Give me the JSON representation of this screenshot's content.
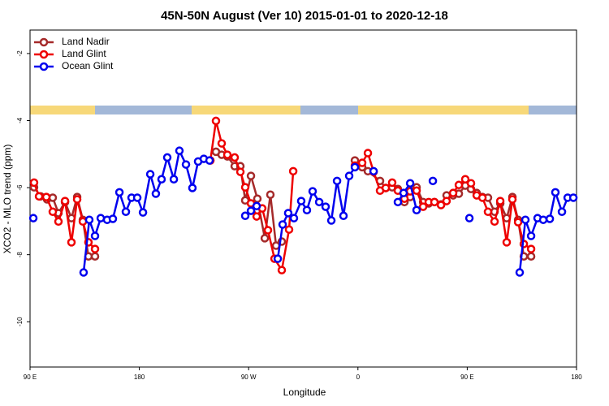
{
  "chart_data": {
    "type": "line",
    "title": "45N-50N August (Ver 10)   2015-01-01 to 2020-12-18",
    "x_label": "Longitude",
    "y_label": "XCO2 - MLO trend (ppm)",
    "xlim": [
      90,
      540
    ],
    "ylim": [
      -11.35,
      -1.3
    ],
    "xticks": [
      {
        "value": 90,
        "label": "90 E"
      },
      180,
      {
        "value": 270,
        "label": "90 W"
      },
      {
        "value": 360,
        "label": "0"
      },
      {
        "value": 450,
        "label": "90 E"
      },
      {
        "value": 540,
        "label": "180"
      }
    ],
    "yticks": [
      -2,
      -4,
      -6,
      -8,
      -10
    ],
    "grid": false,
    "legend": "top-left",
    "series": [
      {
        "name": "Land Nadir",
        "color": "#a52a2a",
        "x": [
          93.3,
          98.7,
          104.0,
          108.7,
          113.4,
          118.8,
          124.1,
          128.8,
          133.5,
          138.1,
          143.5,
          null,
          243.1,
          247.8,
          252.5,
          258.5,
          263.2,
          267.2,
          271.9,
          277.2,
          283.3,
          287.9,
          292.6,
          297.3,
          null,
          357.5,
          363.5,
          368.2,
          378.2,
          382.9,
          388.2,
          392.9,
          398.3,
          403.0,
          408.3,
          413.7,
          418.3,
          423.0,
          428.4,
          433.0,
          438.4,
          443.1,
          448.4,
          453.1,
          457.8,
          462.5,
          467.1,
          472.5,
          477.2,
          482.5,
          487.2,
          491.9,
          496.6,
          502.6
        ],
        "values": [
          -5.99,
          -6.26,
          -6.35,
          -6.3,
          -6.76,
          -6.43,
          -6.91,
          -6.28,
          -6.96,
          -8.05,
          -8.05,
          null,
          -4.93,
          -5.02,
          -5.07,
          -5.36,
          -5.36,
          -6.38,
          -5.65,
          -6.33,
          -7.51,
          -6.21,
          -7.73,
          -7.61,
          null,
          -5.19,
          -5.39,
          -5.51,
          -5.8,
          -6.01,
          -5.99,
          -6.04,
          -6.43,
          -6.28,
          -5.99,
          -6.43,
          -6.47,
          -6.43,
          -6.5,
          -6.23,
          -6.23,
          -6.18,
          -5.94,
          -6.04,
          -6.16,
          -6.28,
          -6.3,
          -6.72,
          -6.47,
          -6.91,
          -6.28,
          -6.96,
          -8.05,
          -8.05
        ]
      },
      {
        "name": "Land Glint",
        "color": "#ee0000",
        "x": [
          93.3,
          97.4,
          103.4,
          108.7,
          113.4,
          118.8,
          124.1,
          128.8,
          133.5,
          138.1,
          143.5,
          null,
          238.5,
          243.1,
          247.8,
          252.5,
          258.5,
          263.2,
          267.2,
          271.9,
          276.6,
          281.2,
          285.9,
          291.3,
          297.3,
          303.3,
          306.7,
          null,
          357.5,
          363.5,
          368.2,
          372.9,
          378.2,
          382.9,
          388.2,
          392.9,
          398.3,
          403.0,
          408.3,
          413.7,
          418.3,
          423.0,
          428.4,
          433.0,
          438.4,
          443.1,
          448.4,
          453.1,
          457.8,
          462.5,
          467.1,
          472.5,
          477.2,
          482.5,
          487.2,
          491.9,
          496.6,
          502.6
        ],
        "values": [
          -5.85,
          -6.26,
          -6.28,
          -6.72,
          -7.01,
          -6.4,
          -7.63,
          -6.35,
          -7.01,
          -7.63,
          -7.83,
          null,
          -5.19,
          -4.01,
          -4.68,
          -5.02,
          -5.1,
          -5.53,
          -5.99,
          -6.47,
          -6.86,
          -6.62,
          -7.27,
          -8.12,
          -8.46,
          -7.25,
          -5.51,
          null,
          -5.34,
          -5.26,
          -4.97,
          -5.53,
          -6.09,
          -6.01,
          -5.85,
          -6.09,
          -6.33,
          -6.11,
          -6.09,
          -6.57,
          -6.43,
          -6.43,
          -6.52,
          -6.4,
          -6.16,
          -5.92,
          -5.75,
          -5.87,
          -6.23,
          -6.3,
          -6.72,
          -7.01,
          -6.4,
          -7.63,
          -6.35,
          -7.03,
          -7.68,
          -7.83
        ]
      },
      {
        "name": "Ocean Glint",
        "color": "#0000ee",
        "x": [
          92.7,
          null,
          134.1,
          138.8,
          143.5,
          148.2,
          153.5,
          158.2,
          163.6,
          168.9,
          173.6,
          178.3,
          183.0,
          189.0,
          193.6,
          198.3,
          203.0,
          208.4,
          213.0,
          218.4,
          223.7,
          228.4,
          233.1,
          237.8,
          null,
          267.2,
          271.9,
          276.6,
          null,
          294.0,
          298.0,
          302.6,
          307.3,
          313.3,
          318.0,
          322.7,
          328.1,
          333.4,
          338.1,
          342.8,
          348.1,
          352.8,
          357.5,
          null,
          372.9,
          null,
          392.9,
          397.6,
          403.0,
          408.3,
          null,
          421.7,
          null,
          451.8,
          null,
          493.2,
          497.9,
          502.6,
          507.9,
          512.6,
          518.0,
          522.6,
          528.0,
          532.7,
          537.4
        ],
        "values": [
          -6.91,
          null,
          -8.53,
          -6.96,
          -7.44,
          -6.91,
          -6.96,
          -6.93,
          -6.14,
          -6.72,
          -6.3,
          -6.3,
          -6.74,
          -5.6,
          -6.18,
          -5.75,
          -5.1,
          -5.75,
          -4.9,
          -5.31,
          -6.01,
          -5.22,
          -5.14,
          -5.19,
          null,
          -6.84,
          -6.69,
          -6.55,
          null,
          -8.12,
          -7.1,
          -6.76,
          -6.91,
          -6.4,
          -6.67,
          -6.11,
          -6.43,
          -6.57,
          -6.98,
          -5.8,
          -6.84,
          -5.65,
          -5.39,
          null,
          -5.51,
          null,
          -6.43,
          -6.16,
          -5.87,
          -6.67,
          null,
          -5.8,
          null,
          -6.91,
          null,
          -8.53,
          -6.96,
          -7.44,
          -6.91,
          -6.96,
          -6.93,
          -6.14,
          -6.72,
          -6.3,
          -6.3
        ]
      }
    ]
  }
}
